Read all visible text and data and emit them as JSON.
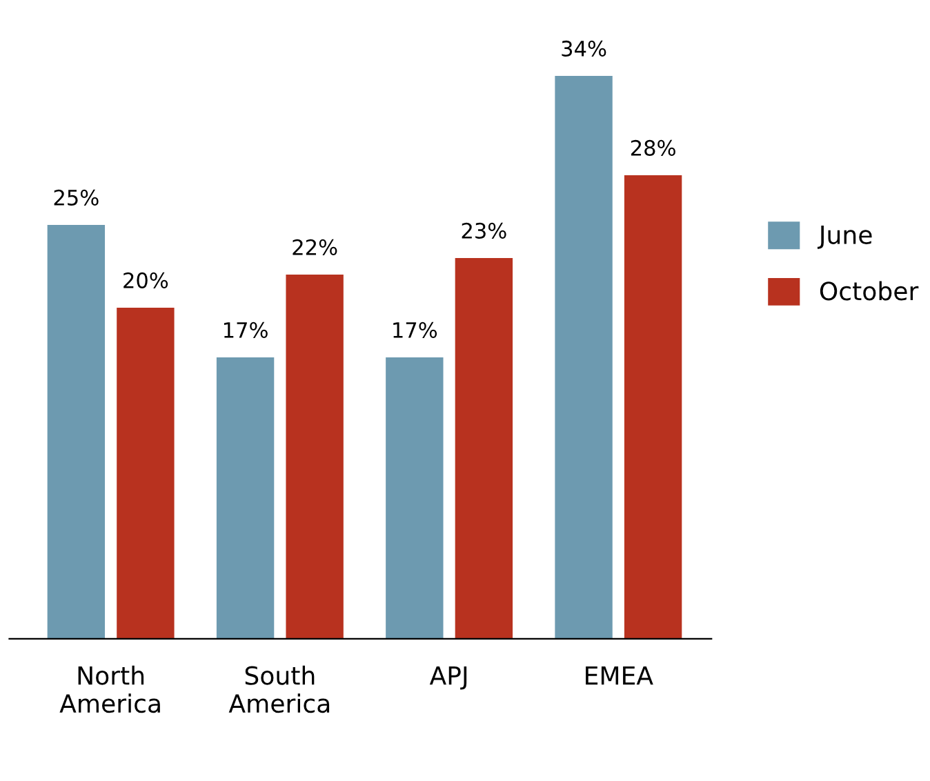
{
  "chart_data": {
    "type": "bar",
    "categories": [
      "North\nAmerica",
      "South\nAmerica",
      "APJ",
      "EMEA"
    ],
    "series": [
      {
        "name": "June",
        "color": "#6d9ab0",
        "values": [
          25,
          17,
          17,
          34
        ],
        "value_labels": [
          "25%",
          "17%",
          "17%",
          "34%"
        ]
      },
      {
        "name": "October",
        "color": "#b8321f",
        "values": [
          20,
          22,
          23,
          28
        ],
        "value_labels": [
          "20%",
          "22%",
          "23%",
          "28%"
        ]
      }
    ],
    "legend": "right",
    "grid": false
  }
}
